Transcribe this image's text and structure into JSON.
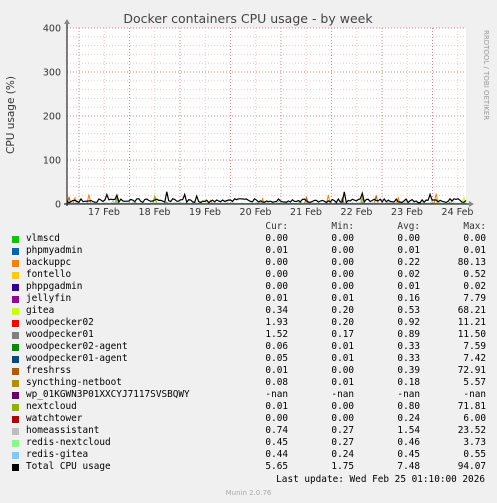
{
  "chart_data": {
    "type": "line",
    "title": "Docker containers CPU usage - by week",
    "ylabel": "CPU usage (%)",
    "ylim": [
      0,
      400
    ],
    "yticks": [
      0,
      100,
      200,
      300,
      400
    ],
    "xticks": [
      "17 Feb",
      "18 Feb",
      "19 Feb",
      "20 Feb",
      "21 Feb",
      "22 Feb",
      "23 Feb",
      "24 Feb"
    ],
    "side_label": "RRDTOOL / TOBI OETIKER",
    "grid": true,
    "columns": [
      "Cur:",
      "Min:",
      "Avg:",
      "Max:"
    ],
    "series": [
      {
        "name": "vlmscd",
        "color": "#00cc00",
        "cur": "0.00",
        "min": "0.00",
        "avg": "0.00",
        "max": "0.00"
      },
      {
        "name": "phpmyadmin",
        "color": "#0066b3",
        "cur": "0.01",
        "min": "0.00",
        "avg": "0.01",
        "max": "0.01"
      },
      {
        "name": "backuppc",
        "color": "#ff8000",
        "cur": "0.00",
        "min": "0.00",
        "avg": "0.22",
        "max": "80.13"
      },
      {
        "name": "fontello",
        "color": "#ffcc00",
        "cur": "0.00",
        "min": "0.00",
        "avg": "0.02",
        "max": "0.52"
      },
      {
        "name": "phppgadmin",
        "color": "#330099",
        "cur": "0.00",
        "min": "0.00",
        "avg": "0.01",
        "max": "0.02"
      },
      {
        "name": "jellyfin",
        "color": "#990099",
        "cur": "0.01",
        "min": "0.01",
        "avg": "0.16",
        "max": "7.79"
      },
      {
        "name": "gitea",
        "color": "#ccff00",
        "cur": "0.34",
        "min": "0.20",
        "avg": "0.53",
        "max": "68.21"
      },
      {
        "name": "woodpecker02",
        "color": "#ff0000",
        "cur": "1.93",
        "min": "0.20",
        "avg": "0.92",
        "max": "11.21"
      },
      {
        "name": "woodpecker01",
        "color": "#808080",
        "cur": "1.52",
        "min": "0.17",
        "avg": "0.89",
        "max": "11.50"
      },
      {
        "name": "woodpecker02-agent",
        "color": "#008f00",
        "cur": "0.06",
        "min": "0.01",
        "avg": "0.33",
        "max": "7.59"
      },
      {
        "name": "woodpecker01-agent",
        "color": "#00487d",
        "cur": "0.05",
        "min": "0.01",
        "avg": "0.33",
        "max": "7.42"
      },
      {
        "name": "freshrss",
        "color": "#b35a00",
        "cur": "0.01",
        "min": "0.00",
        "avg": "0.39",
        "max": "72.91"
      },
      {
        "name": "syncthing-netboot",
        "color": "#b38f00",
        "cur": "0.08",
        "min": "0.01",
        "avg": "0.18",
        "max": "5.57"
      },
      {
        "name": "wp_01KGWN3P01XXCYJ7117SVSBQWY",
        "color": "#6b006b",
        "cur": "-nan",
        "min": "-nan",
        "avg": "-nan",
        "max": "-nan"
      },
      {
        "name": "nextcloud",
        "color": "#8fb300",
        "cur": "0.01",
        "min": "0.00",
        "avg": "0.80",
        "max": "71.81"
      },
      {
        "name": "watchtower",
        "color": "#b30000",
        "cur": "0.00",
        "min": "0.00",
        "avg": "0.24",
        "max": "6.00"
      },
      {
        "name": "homeassistant",
        "color": "#bebebe",
        "cur": "0.74",
        "min": "0.27",
        "avg": "1.54",
        "max": "23.52"
      },
      {
        "name": "redis-nextcloud",
        "color": "#80ff80",
        "cur": "0.45",
        "min": "0.27",
        "avg": "0.46",
        "max": "3.73"
      },
      {
        "name": "redis-gitea",
        "color": "#80c9ff",
        "cur": "0.44",
        "min": "0.24",
        "avg": "0.45",
        "max": "0.55"
      },
      {
        "name": "Total CPU usage",
        "color": "#000000",
        "cur": "5.65",
        "min": "1.75",
        "avg": "7.48",
        "max": "94.07"
      }
    ]
  },
  "footer": {
    "last_update": "Last update: Wed Feb 25 01:10:00 2026",
    "version": "Munin 2.0.76"
  }
}
